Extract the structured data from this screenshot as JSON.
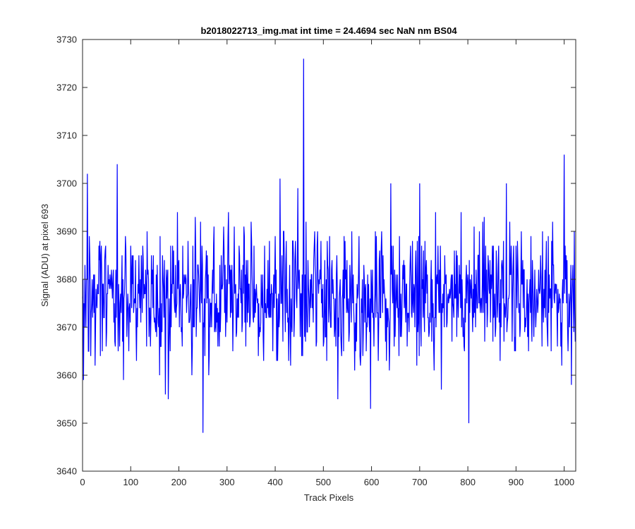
{
  "chart_data": {
    "type": "line",
    "title": "b2018022713_img.mat int time = 24.4694 sec  NaN nm BS04",
    "xlabel": "Track Pixels",
    "ylabel": "Signal (ADU) at pixel 693",
    "xlim": [
      0,
      1024
    ],
    "ylim": [
      3640,
      3730
    ],
    "xticks": [
      0,
      100,
      200,
      300,
      400,
      500,
      600,
      700,
      800,
      900,
      1000
    ],
    "yticks": [
      3640,
      3650,
      3660,
      3670,
      3680,
      3690,
      3700,
      3710,
      3720,
      3730
    ],
    "grid": false,
    "legend": "none",
    "series": [
      {
        "color": "#0000ff",
        "noise": {
          "n": 1024,
          "mean": 3677,
          "amplitude": 9,
          "seed": 20180227
        },
        "points": [
          [
            0,
            3676
          ],
          [
            2,
            3659
          ],
          [
            5,
            3683
          ],
          [
            7,
            3670
          ],
          [
            10,
            3702
          ],
          [
            13,
            3665
          ],
          [
            72,
            3704
          ],
          [
            85,
            3659
          ],
          [
            160,
            3660
          ],
          [
            172,
            3656
          ],
          [
            178,
            3655
          ],
          [
            250,
            3648
          ],
          [
            262,
            3660
          ],
          [
            300,
            3671
          ],
          [
            350,
            3692
          ],
          [
            410,
            3701
          ],
          [
            432,
            3662
          ],
          [
            447,
            3699
          ],
          [
            455,
            3664
          ],
          [
            459,
            3726
          ],
          [
            462,
            3681
          ],
          [
            530,
            3655
          ],
          [
            598,
            3653
          ],
          [
            640,
            3700
          ],
          [
            700,
            3700
          ],
          [
            745,
            3657
          ],
          [
            802,
            3650
          ],
          [
            880,
            3700
          ],
          [
            903,
            3688
          ],
          [
            1000,
            3706
          ],
          [
            1008,
            3665
          ],
          [
            1015,
            3658
          ],
          [
            1023,
            3667
          ]
        ]
      }
    ]
  }
}
